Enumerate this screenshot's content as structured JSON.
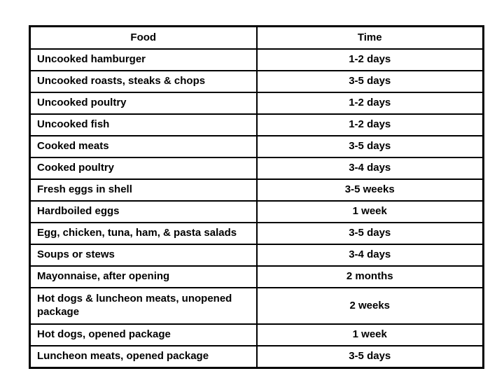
{
  "table": {
    "headers": [
      "Food",
      "Time"
    ],
    "rows": [
      {
        "food": "Uncooked hamburger",
        "time": "1-2 days"
      },
      {
        "food": "Uncooked roasts, steaks & chops",
        "time": "3-5 days"
      },
      {
        "food": "Uncooked poultry",
        "time": "1-2 days"
      },
      {
        "food": "Uncooked fish",
        "time": "1-2 days"
      },
      {
        "food": "Cooked meats",
        "time": "3-5 days"
      },
      {
        "food": "Cooked poultry",
        "time": "3-4 days"
      },
      {
        "food": "Fresh eggs in shell",
        "time": "3-5 weeks"
      },
      {
        "food": "Hardboiled eggs",
        "time": "1 week"
      },
      {
        "food": "Egg, chicken, tuna, ham, & pasta salads",
        "time": "3-5 days"
      },
      {
        "food": "Soups or stews",
        "time": "3-4 days"
      },
      {
        "food": "Mayonnaise, after opening",
        "time": "2 months"
      },
      {
        "food": "Hot dogs & luncheon meats, unopened package",
        "time": "2 weeks"
      },
      {
        "food": "Hot dogs, opened package",
        "time": "1 week"
      },
      {
        "food": "Luncheon meats, opened package",
        "time": "3-5 days"
      }
    ],
    "colors": {
      "border": "#000000",
      "text": "#000000",
      "background": "#ffffff"
    }
  }
}
